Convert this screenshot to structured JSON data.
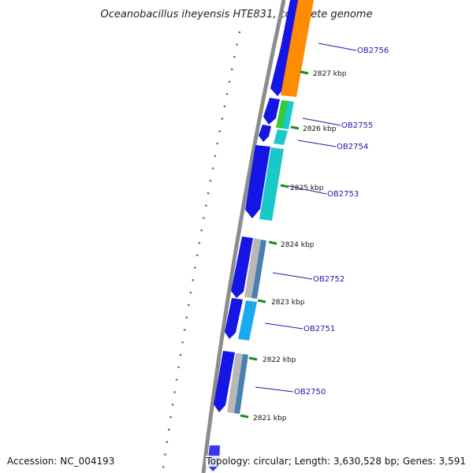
{
  "title": "Oceanobacillus iheyensis HTE831, complete genome",
  "accession": "Accession: NC_004193",
  "topology": "Topology: circular; Length: 3,630,528 bp; Genes: 3,591",
  "colors": {
    "backbone": "#8c8c8c",
    "tick": "#1e8a1e",
    "label": "#1a1aa6",
    "forward_blue": "#1515e6",
    "orange": "#ff8c00",
    "green": "#33cc33",
    "cyan": "#19c8c8",
    "sky": "#19aaf0",
    "grey": "#b8b8b8",
    "steel": "#4a7fb0"
  },
  "ticks": [
    "2827 kbp",
    "2826 kbp",
    "2825 kbp",
    "2824 kbp",
    "2823 kbp",
    "2822 kbp",
    "2821 kbp"
  ],
  "genes": [
    "OB2756",
    "OB2755",
    "OB2754",
    "OB2753",
    "OB2752",
    "OB2751",
    "OB2750"
  ]
}
